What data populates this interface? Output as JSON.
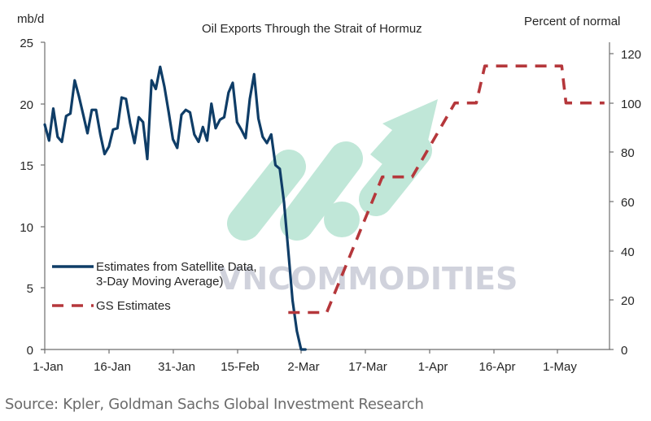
{
  "chart_data": {
    "type": "line",
    "title": "Oil Exports Through the Strait of Hormuz",
    "ylabel_left": "mb/d",
    "ylabel_right": "Percent of normal",
    "xlabel": "",
    "ylim_left": [
      0,
      25
    ],
    "ylim_right": [
      0,
      120
    ],
    "yticks_left": [
      "0",
      "5",
      "10",
      "15",
      "20",
      "25"
    ],
    "yticks_right": [
      "0",
      "20",
      "40",
      "60",
      "80",
      "100",
      "120"
    ],
    "xticks": [
      "1-Jan",
      "16-Jan",
      "31-Jan",
      "15-Feb",
      "2-Mar",
      "17-Mar",
      "1-Apr",
      "16-Apr",
      "1-May"
    ],
    "grid": false,
    "legend_position": "lower-left inside",
    "series": [
      {
        "name": "Estimates from Satellite Data, 3-Day Moving Average)",
        "axis": "left",
        "color": "#0f3d67",
        "style": "solid",
        "x_days_from_jan1": [
          0,
          1,
          2,
          3,
          4,
          5,
          6,
          7,
          8,
          9,
          10,
          11,
          12,
          13,
          14,
          15,
          16,
          17,
          18,
          19,
          20,
          21,
          22,
          23,
          24,
          25,
          26,
          27,
          28,
          29,
          30,
          31,
          32,
          33,
          34,
          35,
          36,
          37,
          38,
          39,
          40,
          41,
          42,
          43,
          44,
          45,
          46,
          47,
          48,
          49,
          50,
          51,
          52,
          53,
          54,
          55,
          56,
          57,
          58,
          59,
          60,
          61
        ],
        "values": [
          18.3,
          17.0,
          19.6,
          17.3,
          16.9,
          19.0,
          19.2,
          21.9,
          20.6,
          19.1,
          17.6,
          19.5,
          19.5,
          17.5,
          15.9,
          16.5,
          17.9,
          18.0,
          20.5,
          20.4,
          18.4,
          16.8,
          18.9,
          18.5,
          15.5,
          21.9,
          21.2,
          23.0,
          21.4,
          19.3,
          17.1,
          16.4,
          19.1,
          19.5,
          19.3,
          17.5,
          16.9,
          18.1,
          17.0,
          20.0,
          18.0,
          18.7,
          18.9,
          20.9,
          21.7,
          18.5,
          17.9,
          17.2,
          20.4,
          22.4,
          18.8,
          17.3,
          16.8,
          17.5,
          15.0,
          14.7,
          12.0,
          8.0,
          4.0,
          1.5,
          0.0,
          0.0
        ]
      },
      {
        "name": "GS Estimates",
        "axis": "right",
        "color": "#b5373b",
        "style": "dashed",
        "x_days_from_jan1": [
          57,
          66,
          79,
          86,
          96,
          101,
          103,
          121,
          122,
          131
        ],
        "values": [
          15,
          15,
          70,
          70,
          100,
          100,
          115,
          115,
          100,
          100
        ]
      }
    ],
    "source": "Source: Kpler, Goldman Sachs Global Investment Research"
  },
  "header": {
    "title": "Oil Exports Through the Strait of Hormuz",
    "left_unit": "mb/d",
    "right_unit": "Percent of normal"
  },
  "axes": {
    "left_ticks": [
      "25",
      "20",
      "15",
      "10",
      "5",
      "0"
    ],
    "right_ticks": [
      "120",
      "100",
      "80",
      "60",
      "40",
      "20",
      "0"
    ],
    "x_ticks": [
      "1-Jan",
      "16-Jan",
      "31-Jan",
      "15-Feb",
      "2-Mar",
      "17-Mar",
      "1-Apr",
      "16-Apr",
      "1-May"
    ]
  },
  "legend": {
    "satellite_line1": "Estimates from Satellite Data,",
    "satellite_line2": "3-Day Moving Average)",
    "gs": "GS Estimates"
  },
  "watermark": {
    "text": "VNCOMMODITIES",
    "logo_color": "#b7e6d3"
  },
  "colors": {
    "satellite": "#0f3d67",
    "gs": "#b5373b",
    "axis": "#6e6e6e"
  },
  "footer": {
    "source": "Source: Kpler, Goldman Sachs Global Investment Research"
  }
}
